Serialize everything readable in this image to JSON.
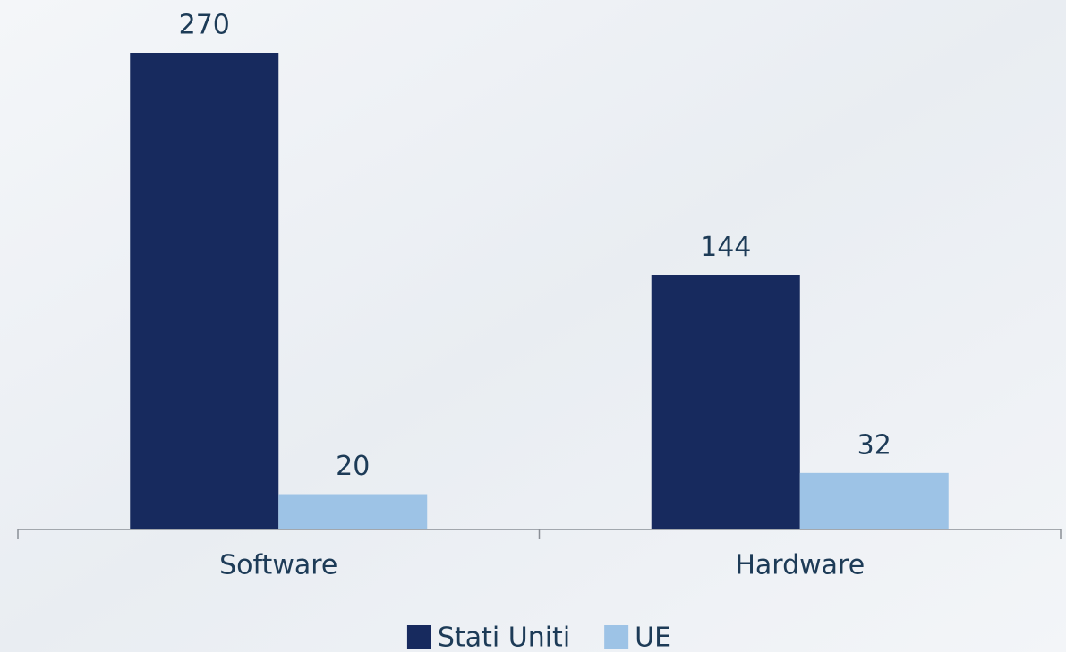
{
  "chart_data": {
    "type": "bar",
    "categories": [
      "Software",
      "Hardware"
    ],
    "series": [
      {
        "name": "Stati Uniti",
        "color": "#172a5e",
        "values": [
          270,
          144
        ]
      },
      {
        "name": "UE",
        "color": "#9dc3e6",
        "values": [
          20,
          32
        ]
      }
    ],
    "legend": "bottom"
  }
}
